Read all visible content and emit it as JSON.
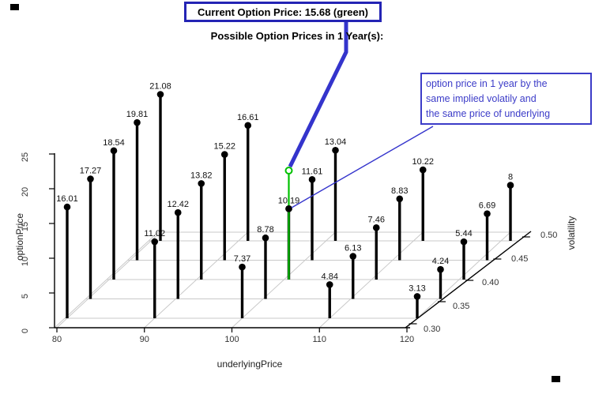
{
  "banner": {
    "text": "Current Option Price: 15.68 (green)"
  },
  "title": {
    "text": "Possible Option Prices in 1 Year(s):"
  },
  "annotation": {
    "lines": [
      "option price in 1 year by the",
      "same implied volatily and",
      "the same price of underlying"
    ]
  },
  "axes": {
    "x_label": "underlyingPrice",
    "y_label": "volatility",
    "z_label": "optionPrice"
  },
  "chart_data": {
    "type": "scatter",
    "subtype": "3d-stem-plot",
    "title": "Possible Option Prices in 1 Year(s):",
    "xlabel": "underlyingPrice",
    "ylabel": "volatility",
    "zlabel": "optionPrice",
    "x_ticks": [
      80,
      90,
      100,
      110,
      120
    ],
    "y_ticks": [
      "0.30",
      "0.35",
      "0.40",
      "0.45",
      "0.50"
    ],
    "z_ticks": [
      0,
      5,
      10,
      15,
      20,
      25
    ],
    "zlim": [
      0,
      25
    ],
    "grid": true,
    "legend": "none",
    "series": [
      {
        "name": "volatility 0.30",
        "x": [
          80,
          90,
          100,
          110,
          120
        ],
        "values": [
          16.01,
          11.02,
          7.37,
          4.84,
          3.13
        ]
      },
      {
        "name": "volatility 0.35",
        "x": [
          80,
          90,
          100,
          110,
          120
        ],
        "values": [
          17.27,
          12.42,
          8.78,
          6.13,
          4.24
        ]
      },
      {
        "name": "volatility 0.40",
        "x": [
          80,
          90,
          100,
          110,
          120
        ],
        "values": [
          18.54,
          13.82,
          10.19,
          7.46,
          5.44
        ]
      },
      {
        "name": "volatility 0.45",
        "x": [
          80,
          90,
          100,
          110,
          120
        ],
        "values": [
          19.81,
          15.22,
          11.61,
          8.83,
          6.69
        ]
      },
      {
        "name": "volatility 0.50",
        "x": [
          80,
          90,
          100,
          110,
          120
        ],
        "values": [
          21.08,
          16.61,
          13.04,
          10.22,
          8
        ]
      }
    ],
    "highlight": {
      "underlying": 100,
      "volatility": "0.40",
      "one_year_price": 10.19,
      "current_price": 15.68,
      "marker": "green stem with open circle at current price"
    },
    "colors": {
      "stem": "#000000",
      "grid": "#c9c9c9",
      "axis": "#000000",
      "tick_text": "#333333",
      "point_text": "#111111",
      "green": "#00c000",
      "callout_border": "#2424b4",
      "callout_line": "#3434cc",
      "annotation_blue": "#3c3cc8"
    }
  }
}
